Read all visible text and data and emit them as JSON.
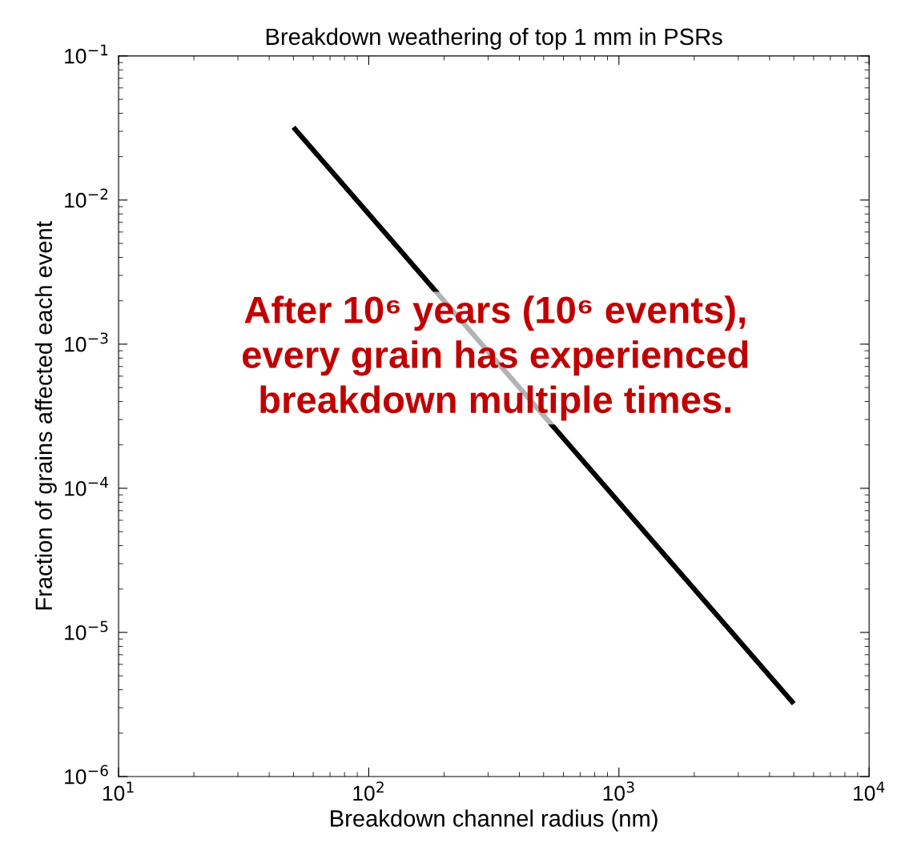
{
  "chart_data": {
    "type": "line",
    "title": "Breakdown weathering of top 1 mm in PSRs",
    "xlabel": "Breakdown channel radius (nm)",
    "ylabel": "Fraction of grains affected each event",
    "log": "xy",
    "grid": false,
    "legend": false,
    "marker": "none",
    "line_style": "solid",
    "xlim": [
      10,
      10000
    ],
    "ylim": [
      1e-06,
      0.1
    ],
    "xticks": [
      {
        "value": 10,
        "label": "10$^{1}$"
      },
      {
        "value": 100,
        "label": "10$^{2}$"
      },
      {
        "value": 1000,
        "label": "10$^{3}$"
      },
      {
        "value": 10000,
        "label": "10$^{4}$"
      }
    ],
    "yticks": [
      {
        "value": 1e-06,
        "label": "10$^{−6}$"
      },
      {
        "value": 1e-05,
        "label": "10$^{−5}$"
      },
      {
        "value": 0.0001,
        "label": "10$^{−4}$"
      },
      {
        "value": 0.001,
        "label": "10$^{−3}$"
      },
      {
        "value": 0.01,
        "label": "10$^{−2}$"
      },
      {
        "value": 0.1,
        "label": "10$^{−1}$"
      }
    ],
    "x": [
      50,
      5000
    ],
    "series": [
      {
        "color": "#000000",
        "values": [
          0.032,
          3.2e-06
        ]
      }
    ],
    "annotations": [
      "After 10⁶ years (10⁶ events),\nevery grain has experienced\nbreakdown multiple times."
    ]
  }
}
